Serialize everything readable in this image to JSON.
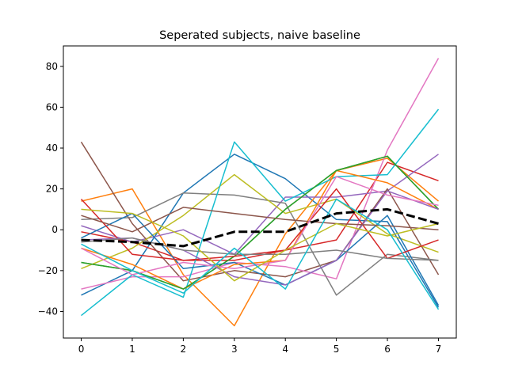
{
  "chart_data": {
    "type": "line",
    "title": "Seperated subjects, naive baseline",
    "xlabel": "",
    "ylabel": "",
    "x": [
      0,
      1,
      2,
      3,
      4,
      5,
      6,
      7
    ],
    "xlim": [
      -0.35,
      7.35
    ],
    "ylim": [
      -53,
      90
    ],
    "xticks": [
      "0",
      "1",
      "2",
      "3",
      "4",
      "5",
      "6",
      "7"
    ],
    "yticks": [
      "−40",
      "−20",
      "0",
      "20",
      "40",
      "60",
      "80"
    ],
    "ytick_values": [
      -40,
      -20,
      0,
      20,
      40,
      60,
      80
    ],
    "grid": false,
    "legend": "none",
    "series": [
      {
        "color": "#1f77b4",
        "values": [
          -32,
          -20,
          18,
          37,
          25,
          5,
          4,
          -38
        ]
      },
      {
        "color": "#ff7f0e",
        "values": [
          14,
          20,
          -22,
          -47,
          -2,
          29,
          35,
          14
        ]
      },
      {
        "color": "#2ca02c",
        "values": [
          -16,
          -20,
          -29,
          -13,
          10,
          29,
          36,
          10
        ]
      },
      {
        "color": "#d62728",
        "values": [
          -1,
          -6,
          -15,
          -15,
          -10,
          -5,
          33,
          24
        ]
      },
      {
        "color": "#9467bd",
        "values": [
          2,
          -6,
          0,
          -12,
          16,
          16,
          19,
          37
        ]
      },
      {
        "color": "#8c564b",
        "values": [
          43,
          3,
          -25,
          -20,
          -23,
          -15,
          20,
          -22
        ]
      },
      {
        "color": "#e377c2",
        "values": [
          -29,
          -23,
          -23,
          -16,
          -18,
          -24,
          39,
          84
        ]
      },
      {
        "color": "#7f7f7f",
        "values": [
          5,
          6,
          18,
          17,
          13,
          -32,
          -12,
          -15
        ]
      },
      {
        "color": "#bcbd22",
        "values": [
          -19,
          -9,
          7,
          27,
          8,
          15,
          -2,
          -11
        ]
      },
      {
        "color": "#17becf",
        "values": [
          -42,
          -22,
          -33,
          43,
          14,
          26,
          27,
          59
        ]
      },
      {
        "color": "#1f77b4",
        "values": [
          -4,
          8,
          -19,
          -16,
          -27,
          -15,
          7,
          -37
        ]
      },
      {
        "color": "#ff7f0e",
        "values": [
          -9,
          -17,
          -29,
          -17,
          -15,
          29,
          23,
          10
        ]
      },
      {
        "color": "#2ca02c",
        "values": [
          -16,
          -20,
          -29,
          -13,
          10,
          29,
          36,
          10
        ]
      },
      {
        "color": "#d62728",
        "values": [
          15,
          -12,
          -15,
          -13,
          -10,
          20,
          -14,
          -5
        ]
      },
      {
        "color": "#9467bd",
        "values": [
          -5,
          -4,
          -10,
          -23,
          -27,
          -15,
          19,
          10
        ]
      },
      {
        "color": "#8c564b",
        "values": [
          7,
          -1,
          11,
          8,
          5,
          3,
          2,
          0
        ]
      },
      {
        "color": "#e377c2",
        "values": [
          -9,
          -22,
          -16,
          -19,
          -15,
          26,
          17,
          12
        ]
      },
      {
        "color": "#7f7f7f",
        "values": [
          -6,
          -4,
          -10,
          -12,
          -12,
          -10,
          -14,
          -15
        ]
      },
      {
        "color": "#bcbd22",
        "values": [
          10,
          8,
          -3,
          -25,
          -10,
          3,
          -3,
          3
        ]
      },
      {
        "color": "#17becf",
        "values": [
          -7,
          -20,
          -31,
          -9,
          -29,
          15,
          0,
          -39
        ]
      },
      {
        "color": "#000000",
        "dashed": true,
        "width": 3,
        "values": [
          -5,
          -6,
          -8,
          -1,
          -1,
          8,
          10,
          3
        ]
      }
    ]
  }
}
